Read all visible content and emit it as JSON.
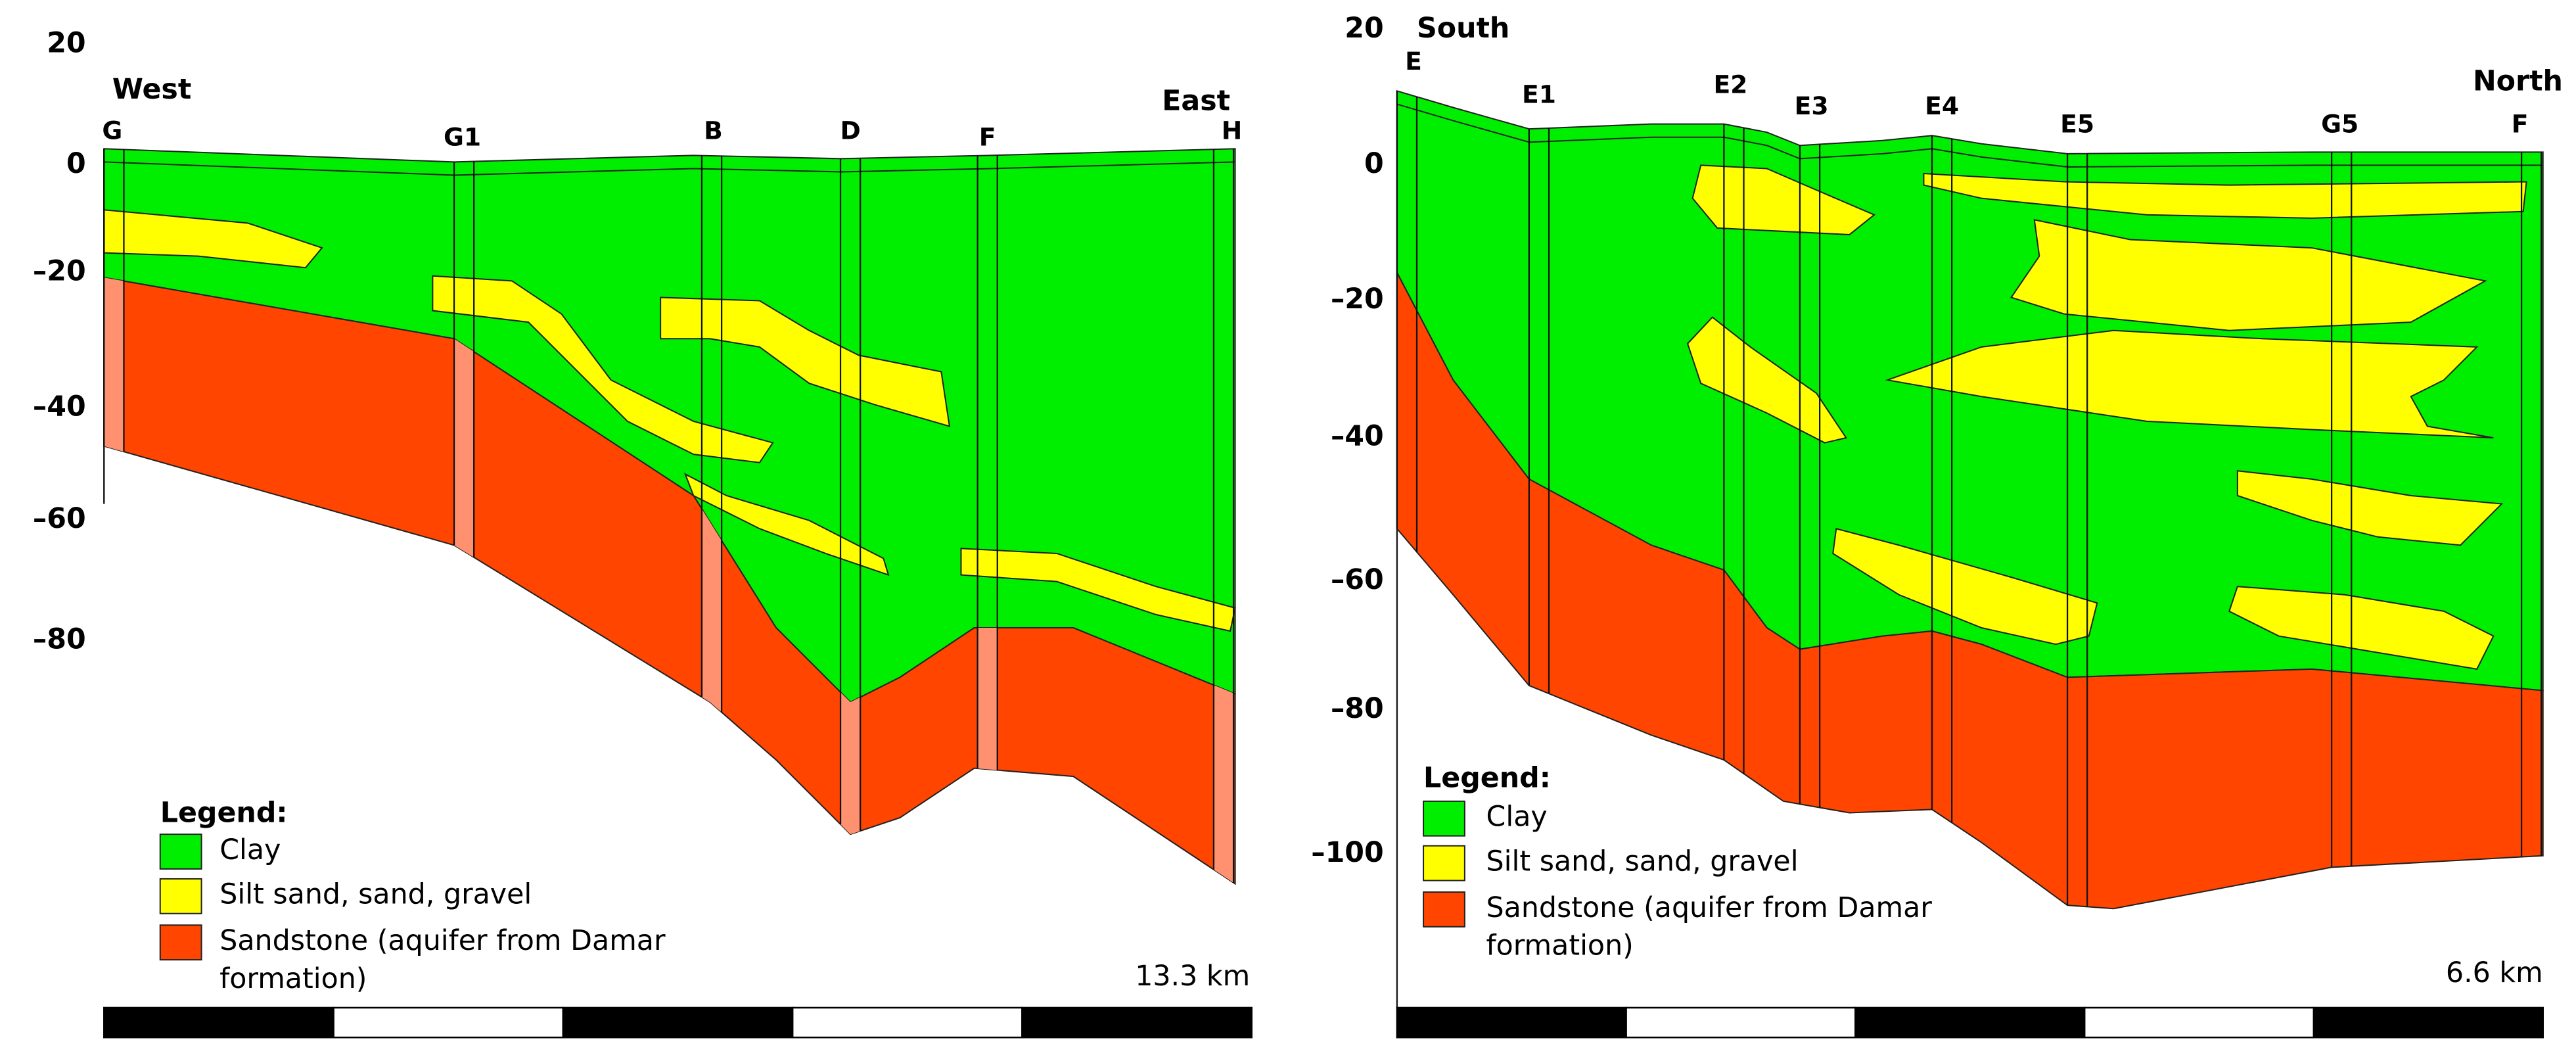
{
  "panels": [
    {
      "direction_left": "West",
      "direction_right": "East",
      "y_axis_labels": [
        "20",
        "0",
        "–20",
        "–40",
        "–60",
        "–80"
      ],
      "boreholes": [
        "G",
        "G1",
        "B",
        "D",
        "F",
        "H"
      ],
      "legend": {
        "title": "Legend:",
        "items": [
          "Clay",
          "Silt sand, sand, gravel",
          "Sandstone (aquifer from Damar formation)"
        ]
      },
      "length": "13.3 km"
    },
    {
      "direction_left": "South",
      "direction_right": "North",
      "y_axis_labels": [
        "20",
        "0",
        "–20",
        "–40",
        "–60",
        "–80",
        "–100"
      ],
      "boreholes": [
        "E",
        "E1",
        "E2",
        "E3",
        "E4",
        "E5",
        "G5",
        "F"
      ],
      "legend": {
        "title": "Legend:",
        "items": [
          "Clay",
          "Silt sand, sand, gravel",
          "Sandstone (aquifer from Damar formation)"
        ]
      },
      "length": "6.6 km"
    }
  ]
}
